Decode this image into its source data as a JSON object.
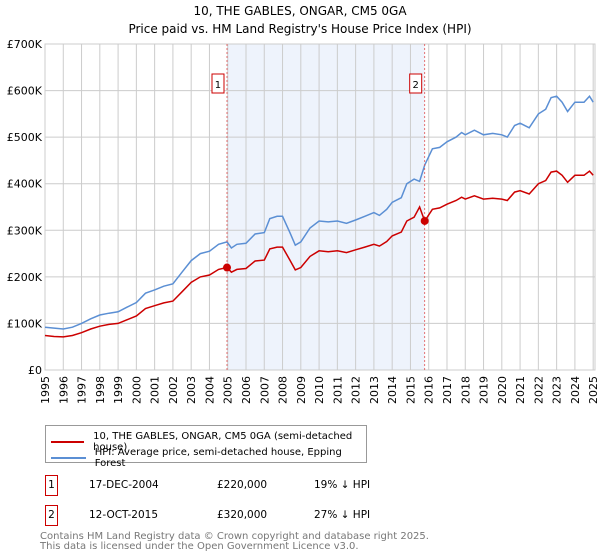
{
  "title": "10, THE GABLES, ONGAR, CM5 0GA",
  "subtitle": "Price paid vs. HM Land Registry's House Price Index (HPI)",
  "chart_data": {
    "type": "line",
    "title": "10, THE GABLES, ONGAR, CM5 0GA — Price paid vs. HM Land Registry's House Price Index (HPI)",
    "xlim": [
      1995,
      2025.1
    ],
    "ylim": [
      0,
      700000
    ],
    "x_ticks": [
      "1995",
      "1996",
      "1997",
      "1998",
      "1999",
      "2000",
      "2001",
      "2002",
      "2003",
      "2004",
      "2005",
      "2006",
      "2007",
      "2008",
      "2009",
      "2010",
      "2011",
      "2012",
      "2013",
      "2014",
      "2015",
      "2016",
      "2017",
      "2018",
      "2019",
      "2020",
      "2021",
      "2022",
      "2023",
      "2024",
      "2025"
    ],
    "y_ticks": [
      {
        "v": 0,
        "label": "£0"
      },
      {
        "v": 100000,
        "label": "£100K"
      },
      {
        "v": 200000,
        "label": "£200K"
      },
      {
        "v": 300000,
        "label": "£300K"
      },
      {
        "v": 400000,
        "label": "£400K"
      },
      {
        "v": 500000,
        "label": "£500K"
      },
      {
        "v": 600000,
        "label": "£600K"
      },
      {
        "v": 700000,
        "label": "£700K"
      }
    ],
    "grid": true,
    "shaded_range": [
      2004.96,
      2015.78
    ],
    "series": [
      {
        "name": "10, THE GABLES, ONGAR, CM5 0GA (semi-detached house)",
        "color": "#cc0000",
        "x": [
          1995,
          1995.5,
          1996,
          1996.5,
          1997,
          1997.5,
          1998,
          1998.5,
          1999,
          1999.5,
          2000,
          2000.5,
          2001,
          2001.5,
          2002,
          2002.5,
          2003,
          2003.5,
          2004,
          2004.5,
          2004.96,
          2005.2,
          2005.5,
          2006,
          2006.5,
          2007,
          2007.3,
          2007.7,
          2008,
          2008.4,
          2008.7,
          2009,
          2009.5,
          2010,
          2010.5,
          2011,
          2011.5,
          2012,
          2012.5,
          2013,
          2013.3,
          2013.7,
          2014,
          2014.5,
          2014.8,
          2015.2,
          2015.5,
          2015.78,
          2016.2,
          2016.6,
          2017,
          2017.5,
          2017.8,
          2018,
          2018.5,
          2019,
          2019.5,
          2020,
          2020.3,
          2020.7,
          2021,
          2021.5,
          2022,
          2022.4,
          2022.7,
          2023,
          2023.3,
          2023.6,
          2024,
          2024.5,
          2024.8,
          2025
        ],
        "y": [
          74,
          72,
          71,
          74,
          80,
          88,
          94,
          98,
          100,
          108,
          116,
          132,
          138,
          144,
          148,
          168,
          188,
          200,
          204,
          216,
          220,
          210,
          216,
          218,
          234,
          236,
          260,
          264,
          264,
          236,
          215,
          220,
          244,
          256,
          254,
          256,
          252,
          258,
          264,
          270,
          266,
          276,
          288,
          296,
          320,
          328,
          350,
          320,
          345,
          348,
          356,
          364,
          371,
          367,
          374,
          367,
          369,
          367,
          364,
          382,
          385,
          378,
          400,
          407,
          425,
          427,
          418,
          403,
          418,
          418,
          427,
          418
        ]
      },
      {
        "name": "HPI: Average price, semi-detached house, Epping Forest",
        "color": "#5b8fd4",
        "x": [
          1995,
          1995.5,
          1996,
          1996.5,
          1997,
          1997.5,
          1998,
          1998.5,
          1999,
          1999.5,
          2000,
          2000.5,
          2001,
          2001.5,
          2002,
          2002.5,
          2003,
          2003.5,
          2004,
          2004.5,
          2004.96,
          2005.2,
          2005.5,
          2006,
          2006.5,
          2007,
          2007.3,
          2007.7,
          2008,
          2008.4,
          2008.7,
          2009,
          2009.5,
          2010,
          2010.5,
          2011,
          2011.5,
          2012,
          2012.5,
          2013,
          2013.3,
          2013.7,
          2014,
          2014.5,
          2014.8,
          2015.2,
          2015.5,
          2015.78,
          2016.2,
          2016.6,
          2017,
          2017.5,
          2017.8,
          2018,
          2018.5,
          2019,
          2019.5,
          2020,
          2020.3,
          2020.7,
          2021,
          2021.5,
          2022,
          2022.4,
          2022.7,
          2023,
          2023.3,
          2023.6,
          2024,
          2024.5,
          2024.8,
          2025
        ],
        "y": [
          92,
          90,
          88,
          92,
          100,
          110,
          118,
          122,
          125,
          135,
          145,
          165,
          172,
          180,
          185,
          210,
          235,
          250,
          255,
          270,
          275,
          262,
          270,
          272,
          292,
          295,
          325,
          330,
          330,
          295,
          268,
          275,
          305,
          320,
          318,
          320,
          315,
          322,
          330,
          338,
          332,
          345,
          360,
          370,
          400,
          410,
          405,
          440,
          475,
          478,
          490,
          500,
          510,
          505,
          515,
          505,
          508,
          505,
          500,
          525,
          530,
          520,
          550,
          560,
          585,
          588,
          575,
          555,
          575,
          575,
          588,
          575
        ]
      }
    ],
    "y_units": "thousands GBP",
    "sales": [
      {
        "label": "1",
        "x": 2004.96,
        "y": 220
      },
      {
        "label": "2",
        "x": 2015.78,
        "y": 320
      }
    ]
  },
  "legend": {
    "property": "10, THE GABLES, ONGAR, CM5 0GA (semi-detached house)",
    "hpi": "HPI: Average price, semi-detached house, Epping Forest"
  },
  "transactions": [
    {
      "num": "1",
      "date": "17-DEC-2004",
      "price": "£220,000",
      "diff": "19% ↓ HPI"
    },
    {
      "num": "2",
      "date": "12-OCT-2015",
      "price": "£320,000",
      "diff": "27% ↓ HPI"
    }
  ],
  "footer": {
    "line1": "Contains HM Land Registry data © Crown copyright and database right 2025.",
    "line2": "This data is licensed under the Open Government Licence v3.0."
  }
}
